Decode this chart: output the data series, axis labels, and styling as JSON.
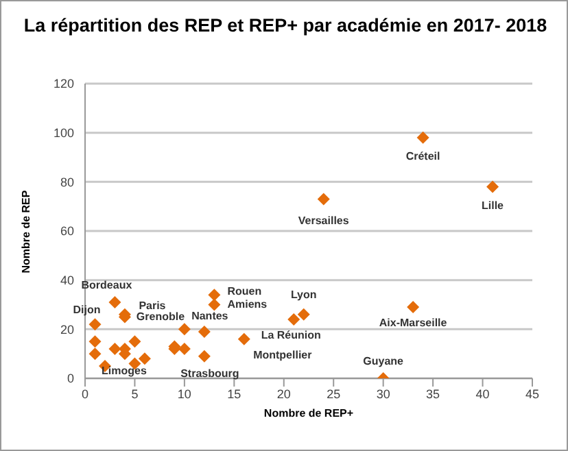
{
  "chart_data": {
    "type": "scatter",
    "title": "La répartition  des REP et REP+ par académie en 2017- 2018",
    "xlabel": "Nombre de REP+",
    "ylabel": "Nombre de REP",
    "marker": "diamond",
    "grid": "y",
    "xlim": [
      0,
      45
    ],
    "ylim": [
      0,
      120
    ],
    "xticks": [
      0,
      5,
      10,
      15,
      20,
      25,
      30,
      35,
      40,
      45
    ],
    "yticks": [
      0,
      20,
      40,
      60,
      80,
      100,
      120
    ],
    "series": [
      {
        "color": "#e46c0a",
        "x": [
          1,
          1,
          1,
          2,
          3,
          3,
          4,
          4,
          4,
          4,
          5,
          5,
          6,
          9,
          9,
          10,
          10,
          12,
          12,
          13,
          13,
          16,
          21,
          22,
          24,
          30,
          33,
          34,
          41
        ],
        "values": [
          22,
          15,
          10,
          5,
          31,
          12,
          26,
          25,
          12,
          10,
          15,
          6,
          8,
          13,
          12,
          20,
          12,
          19,
          9,
          34,
          30,
          16,
          24,
          26,
          73,
          0,
          29,
          98,
          78
        ],
        "value_labels": [
          "Dijon",
          null,
          null,
          "Limoges",
          "Bordeaux",
          null,
          "Paris",
          "Grenoble",
          null,
          null,
          null,
          null,
          null,
          null,
          null,
          null,
          null,
          "Nantes",
          "Strasbourg",
          "Rouen",
          "Amiens",
          "Montpellier",
          "La Réunion",
          "Lyon",
          "Versailles",
          "Guyane",
          "Aix-Marseille",
          "Créteil",
          "Lille"
        ]
      }
    ]
  }
}
